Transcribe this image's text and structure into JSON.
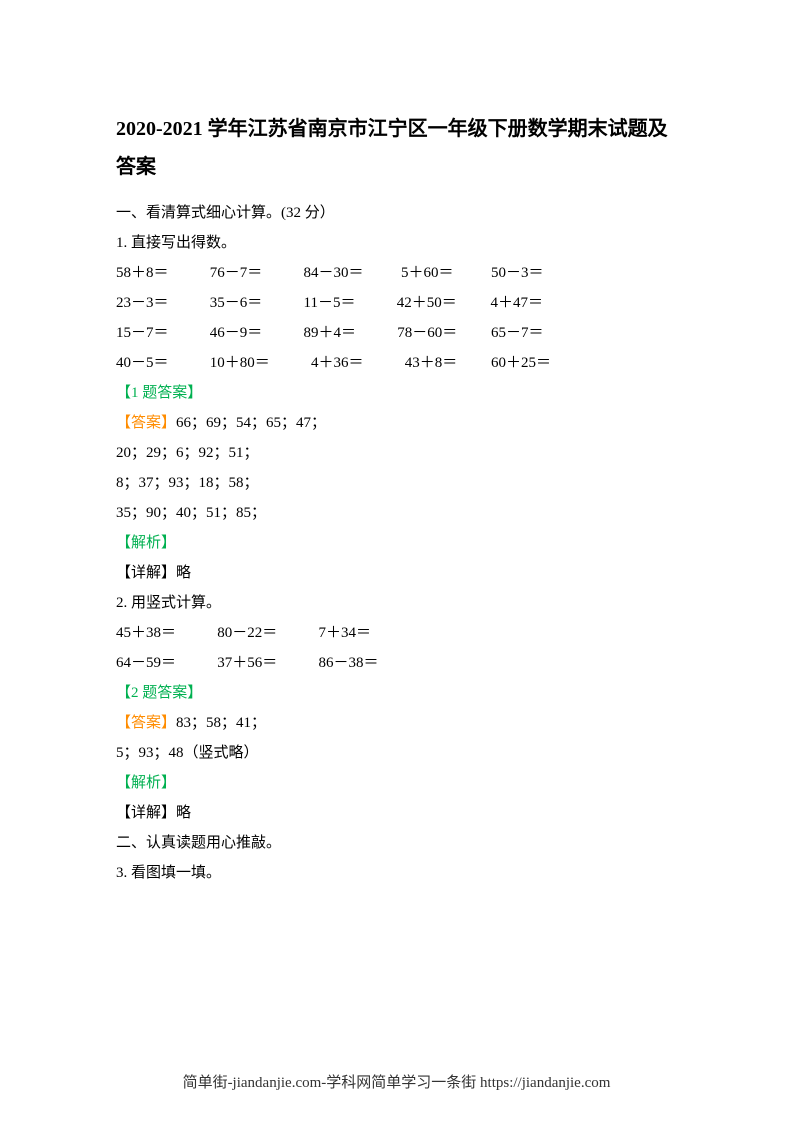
{
  "title": "2020-2021 学年江苏省南京市江宁区一年级下册数学期末试题及答案",
  "section1": {
    "header": "一、看清算式细心计算。(32 分）",
    "q1": {
      "label": "1.  直接写出得数。",
      "rows": [
        "58＋8＝           76－7＝           84－30＝          5＋60＝          50－3＝",
        "23－3＝           35－6＝           11－5＝           42＋50＝         4＋47＝",
        "15－7＝           46－9＝           89＋4＝           78－60＝         65－7＝",
        "40－5＝           10＋80＝           4＋36＝           43＋8＝         60＋25＝"
      ],
      "answerLabel": "【1 题答案】",
      "answerPrefix": "【答案】",
      "answerLines": [
        "66；69；54；65；47；",
        "20；29；6；92；51；",
        "8；37；93；18；58；",
        "35；90；40；51；85；"
      ],
      "analysisLabel": "【解析】",
      "detail": "【详解】略"
    },
    "q2": {
      "label": "2.  用竖式计算。",
      "rows": [
        "45＋38＝           80－22＝           7＋34＝",
        "64－59＝           37＋56＝           86－38＝"
      ],
      "answerLabel": "【2 题答案】",
      "answerPrefix": "【答案】",
      "answerLines": [
        "83；58；41；",
        "5；93；48（竖式略）"
      ],
      "analysisLabel": "【解析】",
      "detail": "【详解】略"
    }
  },
  "section2": {
    "header": "二、认真读题用心推敲。",
    "q3": {
      "label": "3.  看图填一填。"
    }
  },
  "footer": "简单街-jiandanjie.com-学科网简单学习一条街 https://jiandanjie.com"
}
